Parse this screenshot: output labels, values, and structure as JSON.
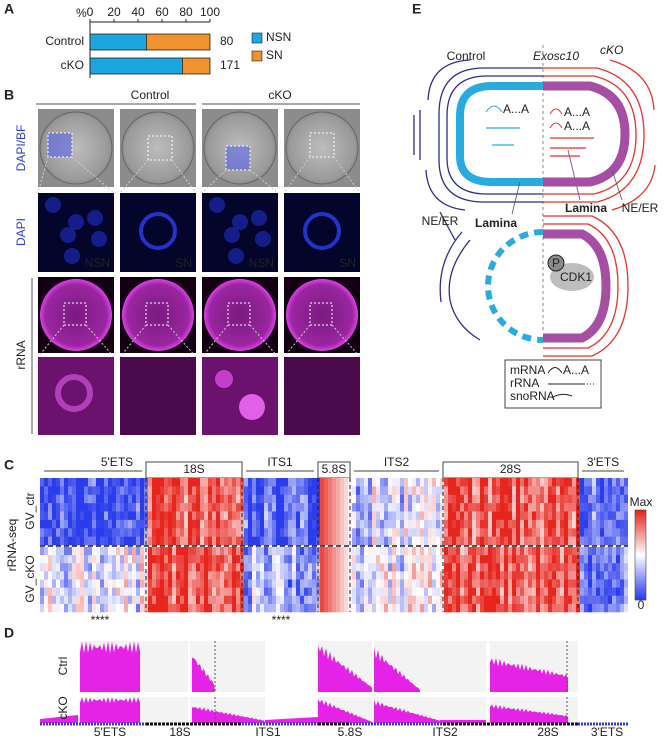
{
  "panel_labels": [
    "A",
    "B",
    "C",
    "D",
    "E"
  ],
  "chart_data": {
    "type": "bar",
    "orientation": "horizontal",
    "stacked": true,
    "axis_label": "%",
    "categories": [
      "Control",
      "cKO"
    ],
    "series": [
      {
        "name": "NSN",
        "color": "#1aa7e0",
        "values": [
          47,
          77
        ]
      },
      {
        "name": "SN",
        "color": "#f0922e",
        "values": [
          53,
          23
        ]
      }
    ],
    "xlim": [
      0,
      100
    ],
    "xticks": [
      0,
      20,
      40,
      60,
      80,
      100
    ],
    "n": [
      80,
      171
    ]
  },
  "panel_b": {
    "column_groups": [
      "Control",
      "cKO"
    ],
    "row_labels": [
      "DAPI/BF",
      "DAPI",
      "rRNA"
    ],
    "stage_labels": [
      "NSN",
      "SN",
      "NSN",
      "SN"
    ]
  },
  "panel_c": {
    "regions": [
      "5'ETS",
      "18S",
      "ITS1",
      "5.8S",
      "ITS2",
      "28S",
      "3'ETS"
    ],
    "assay_label": "rRNA-seq",
    "sample_labels": [
      "GV_ctr",
      "GV_cKO"
    ],
    "colorbar_labels": [
      "Max",
      "0"
    ],
    "significance": [
      "****",
      "****"
    ]
  },
  "panel_d": {
    "track_labels": [
      "Ctrl",
      "cKO"
    ],
    "regions": [
      "5'ETS",
      "18S",
      "ITS1",
      "5.8S",
      "ITS2",
      "28S",
      "3'ETS"
    ]
  },
  "panel_e": {
    "conditions": [
      "Control",
      "Exosc10"
    ],
    "condition_superscript": "cKO",
    "polya": [
      "A...A",
      "A...A",
      "A...A",
      "A...A"
    ],
    "lamina": [
      "Lamina",
      "Lamina"
    ],
    "ne_er": [
      "NE/ER",
      "NE/ER"
    ],
    "phospho": "P",
    "kinase": "CDK1",
    "legend": [
      "mRNA",
      "rRNA",
      "snoRNA"
    ]
  }
}
